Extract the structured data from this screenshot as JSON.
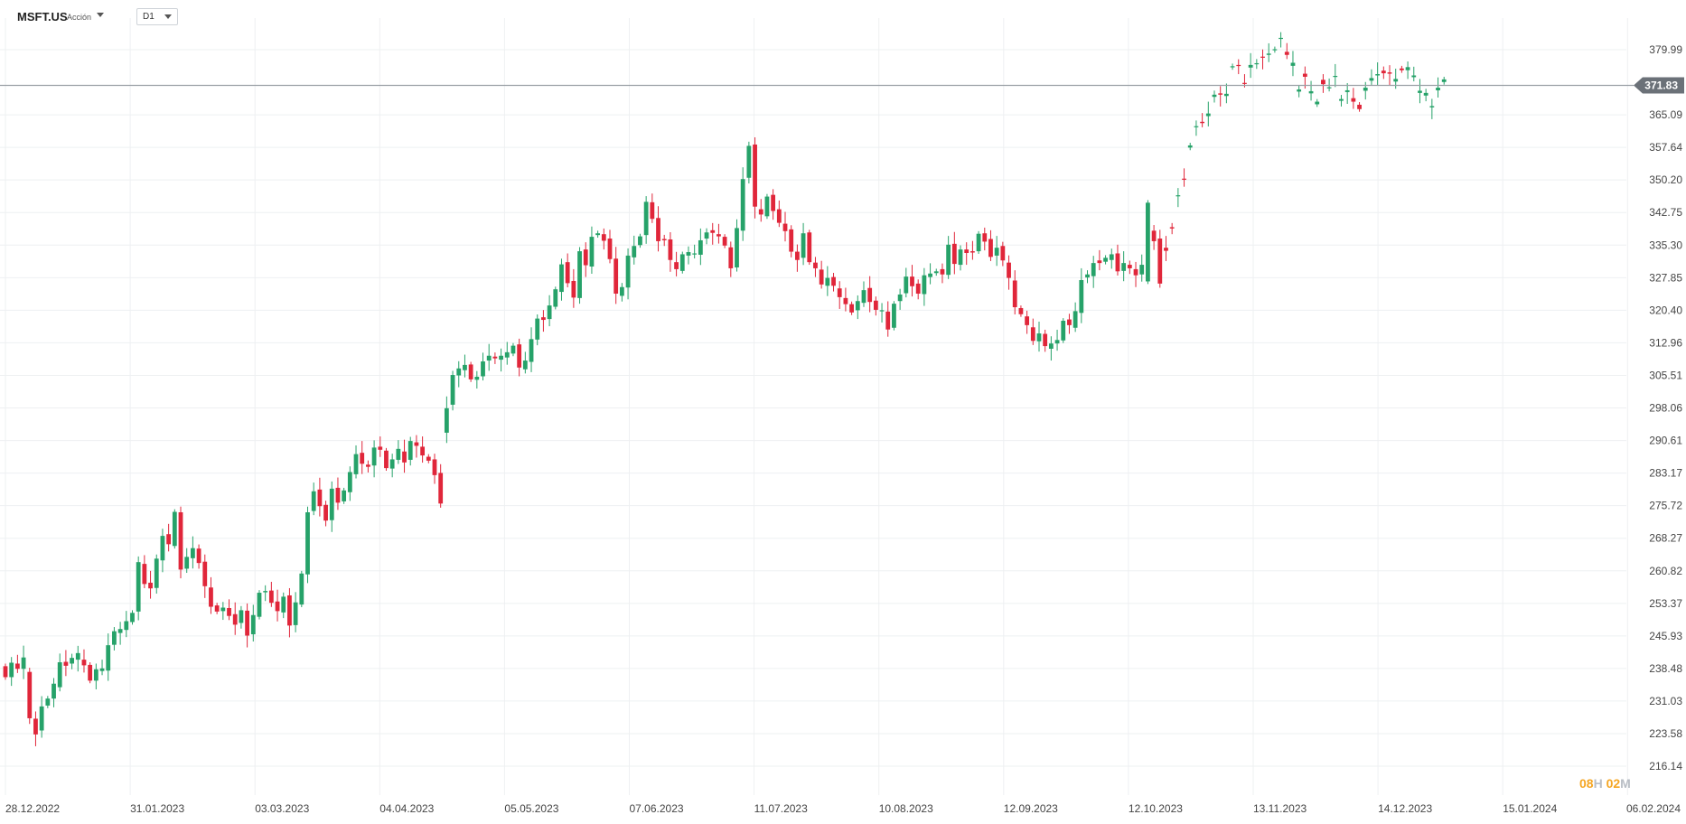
{
  "header": {
    "symbol": "MSFT.US",
    "instrument_type": "Acción",
    "timeframe": "D1"
  },
  "countdown": {
    "hours": "08",
    "hours_unit": "H",
    "minutes": "02",
    "minutes_unit": "M"
  },
  "colors": {
    "up": "#26a269",
    "down": "#e0263a",
    "grid": "#eef0f2",
    "price_line": "#9aa0a6",
    "price_tag": "#6b7178"
  },
  "chart_data": {
    "type": "candlestick",
    "title": "",
    "xlabel": "",
    "ylabel": "",
    "ylim": [
      216.14,
      379.99
    ],
    "grid": true,
    "current_price": 371.83,
    "y_ticks": [
      "379.99",
      "365.09",
      "357.64",
      "350.20",
      "342.75",
      "335.30",
      "327.85",
      "320.40",
      "312.96",
      "305.51",
      "298.06",
      "290.61",
      "283.17",
      "275.72",
      "268.27",
      "260.82",
      "253.37",
      "245.93",
      "238.48",
      "231.03",
      "223.58",
      "216.14"
    ],
    "x_ticks": [
      "28.12.2022",
      "31.01.2023",
      "03.03.2023",
      "04.04.2023",
      "05.05.2023",
      "07.06.2023",
      "11.07.2023",
      "10.08.2023",
      "12.09.2023",
      "12.10.2023",
      "13.11.2023",
      "14.12.2023",
      "15.01.2024",
      "06.02.2024"
    ],
    "closes": [
      236.5,
      239.8,
      238.4,
      241.0,
      227.1,
      223.4,
      229.8,
      231.6,
      235.0,
      239.9,
      239.1,
      240.9,
      242.0,
      239.2,
      235.7,
      238.3,
      238.5,
      243.8,
      247.0,
      247.5,
      249.3,
      251.2,
      262.8,
      257.8,
      256.8,
      263.6,
      268.8,
      266.9,
      274.3,
      261.1,
      264.0,
      266.0,
      262.6,
      257.3,
      252.6,
      251.5,
      252.4,
      250.5,
      248.5,
      251.8,
      246.0,
      250.7,
      255.8,
      256.2,
      253.5,
      251.6,
      254.9,
      248.3,
      253.6,
      260.2,
      274.2,
      279.0,
      275.6,
      272.3,
      279.6,
      276.4,
      279.2,
      283.4,
      287.5,
      285.3,
      284.6,
      289.0,
      288.5,
      284.3,
      286.3,
      288.7,
      285.6,
      290.5,
      289.4,
      287.2,
      286.0,
      282.7,
      276.2,
      298.0,
      305.6,
      307.1,
      307.9,
      304.6,
      305.2,
      308.7,
      310.0,
      309.4,
      310.0,
      310.8,
      312.3,
      307.3,
      308.9,
      313.8,
      318.5,
      318.2,
      321.5,
      325.2,
      330.9,
      326.6,
      323.3,
      333.9,
      330.7,
      337.2,
      338.0,
      336.3,
      332.1,
      324.2,
      325.7,
      332.9,
      335.1,
      337.3,
      345.2,
      341.3,
      336.2,
      336.4,
      331.9,
      329.8,
      333.2,
      333.7,
      333.4,
      336.4,
      338.2,
      338.1,
      337.3,
      335.2,
      330.0,
      339.2,
      350.4,
      358.0,
      344.1,
      342.3,
      346.4,
      343.1,
      340.4,
      338.5,
      333.8,
      331.9,
      338.0,
      331.4,
      330.0,
      326.3,
      327.8,
      326.0,
      323.4,
      321.8,
      319.9,
      322.5,
      325.0,
      322.3,
      320.5,
      320.4,
      316.0,
      321.9,
      324.0,
      328.1,
      325.9,
      324.2,
      328.4,
      328.8,
      329.3,
      328.6,
      335.4,
      331.0,
      334.3,
      333.5,
      333.6,
      337.9,
      336.1,
      332.6,
      334.7,
      331.8,
      327.8,
      321.1,
      319.5,
      317.0,
      313.4,
      315.1,
      312.2,
      312.8,
      313.6,
      318.0,
      317.0,
      320.2,
      327.3,
      328.6,
      331.2,
      331.2,
      332.4,
      333.2,
      329.3,
      331.2,
      330.0,
      328.4,
      330.8,
      345.0,
      336.2,
      326.5,
      334.0,
      339.1,
      346.7,
      350.3,
      358.1,
      362.5,
      363.2,
      365.4,
      369.7,
      369.7,
      369.9,
      376.2,
      376.4,
      372.3,
      376.5,
      376.9,
      378.2,
      379.1,
      380.1,
      382.7,
      378.8,
      377.0,
      370.9,
      373.8,
      370.5,
      368.1,
      372.1,
      371.4,
      374.0,
      368.7,
      370.7,
      368.1,
      366.4,
      371.3,
      373.5,
      374.4,
      374.6,
      374.5,
      373.3,
      375.3,
      376.0,
      374.1,
      370.6,
      370.1,
      367.1,
      371.3,
      373.2,
      371.8
    ],
    "opens": [
      239.0,
      236.5,
      239.6,
      238.4,
      237.7,
      227.0,
      224.3,
      230.0,
      231.6,
      234.2,
      240.0,
      239.6,
      240.5,
      240.5,
      239.3,
      235.7,
      237.9,
      238.0,
      243.9,
      246.6,
      247.3,
      249.1,
      251.5,
      262.4,
      258.1,
      256.9,
      263.2,
      269.2,
      266.5,
      274.2,
      261.3,
      263.7,
      265.9,
      262.9,
      257.0,
      252.9,
      251.6,
      252.3,
      250.9,
      248.9,
      251.7,
      246.3,
      250.3,
      255.9,
      256.3,
      253.8,
      251.3,
      255.2,
      248.4,
      253.1,
      260.0,
      274.5,
      279.4,
      275.9,
      272.4,
      279.8,
      276.7,
      278.8,
      282.9,
      287.8,
      285.1,
      284.9,
      289.2,
      288.3,
      284.2,
      286.2,
      288.1,
      286.2,
      290.2,
      289.2,
      286.9,
      286.3,
      283.2,
      292.4,
      298.8,
      305.5,
      306.7,
      308.0,
      304.5,
      305.3,
      308.9,
      309.8,
      309.1,
      309.6,
      310.5,
      312.6,
      306.9,
      308.6,
      313.7,
      318.8,
      318.4,
      321.2,
      324.6,
      331.4,
      327.1,
      323.2,
      334.3,
      330.4,
      337.6,
      337.8,
      336.8,
      332.2,
      323.7,
      325.6,
      332.5,
      335.3,
      337.6,
      345.1,
      341.5,
      336.7,
      336.6,
      331.4,
      329.4,
      332.9,
      333.2,
      333.1,
      336.8,
      338.7,
      337.8,
      337.2,
      334.8,
      330.2,
      338.6,
      350.7,
      358.3,
      343.5,
      341.9,
      346.8,
      343.5,
      340.2,
      338.9,
      333.8,
      332.4,
      338.2,
      331.3,
      329.7,
      326.0,
      328.0,
      325.4,
      323.2,
      321.8,
      320.4,
      322.1,
      325.5,
      322.6,
      320.3,
      320.1,
      316.4,
      322.5,
      324.3,
      328.1,
      326.5,
      324.1,
      328.0,
      328.9,
      329.8,
      328.5,
      335.6,
      330.8,
      334.3,
      333.9,
      333.9,
      338.0,
      336.7,
      332.9,
      335.1,
      331.3,
      327.2,
      320.9,
      319.0,
      316.5,
      313.3,
      315.0,
      311.6,
      312.8,
      313.5,
      318.3,
      316.4,
      319.8,
      327.9,
      328.2,
      331.8,
      331.5,
      331.9,
      333.4,
      329.4,
      330.8,
      329.8,
      328.6,
      327.0,
      338.6,
      336.8,
      334.7,
      339.4,
      346.7,
      350.5,
      357.6,
      362.3,
      363.5,
      364.8,
      369.2,
      370.0,
      369.4,
      376.0,
      376.5,
      372.4,
      375.9,
      376.9,
      378.4,
      378.8,
      379.9,
      382.5,
      379.5,
      376.3,
      370.4,
      374.5,
      370.0,
      367.5,
      373.1,
      371.4,
      373.8,
      368.3,
      370.3,
      368.9,
      367.4,
      370.6,
      372.9,
      374.1,
      375.2,
      374.8,
      372.7,
      375.7,
      375.3,
      373.7,
      370.1,
      369.5,
      366.8,
      370.7,
      372.6
    ]
  }
}
